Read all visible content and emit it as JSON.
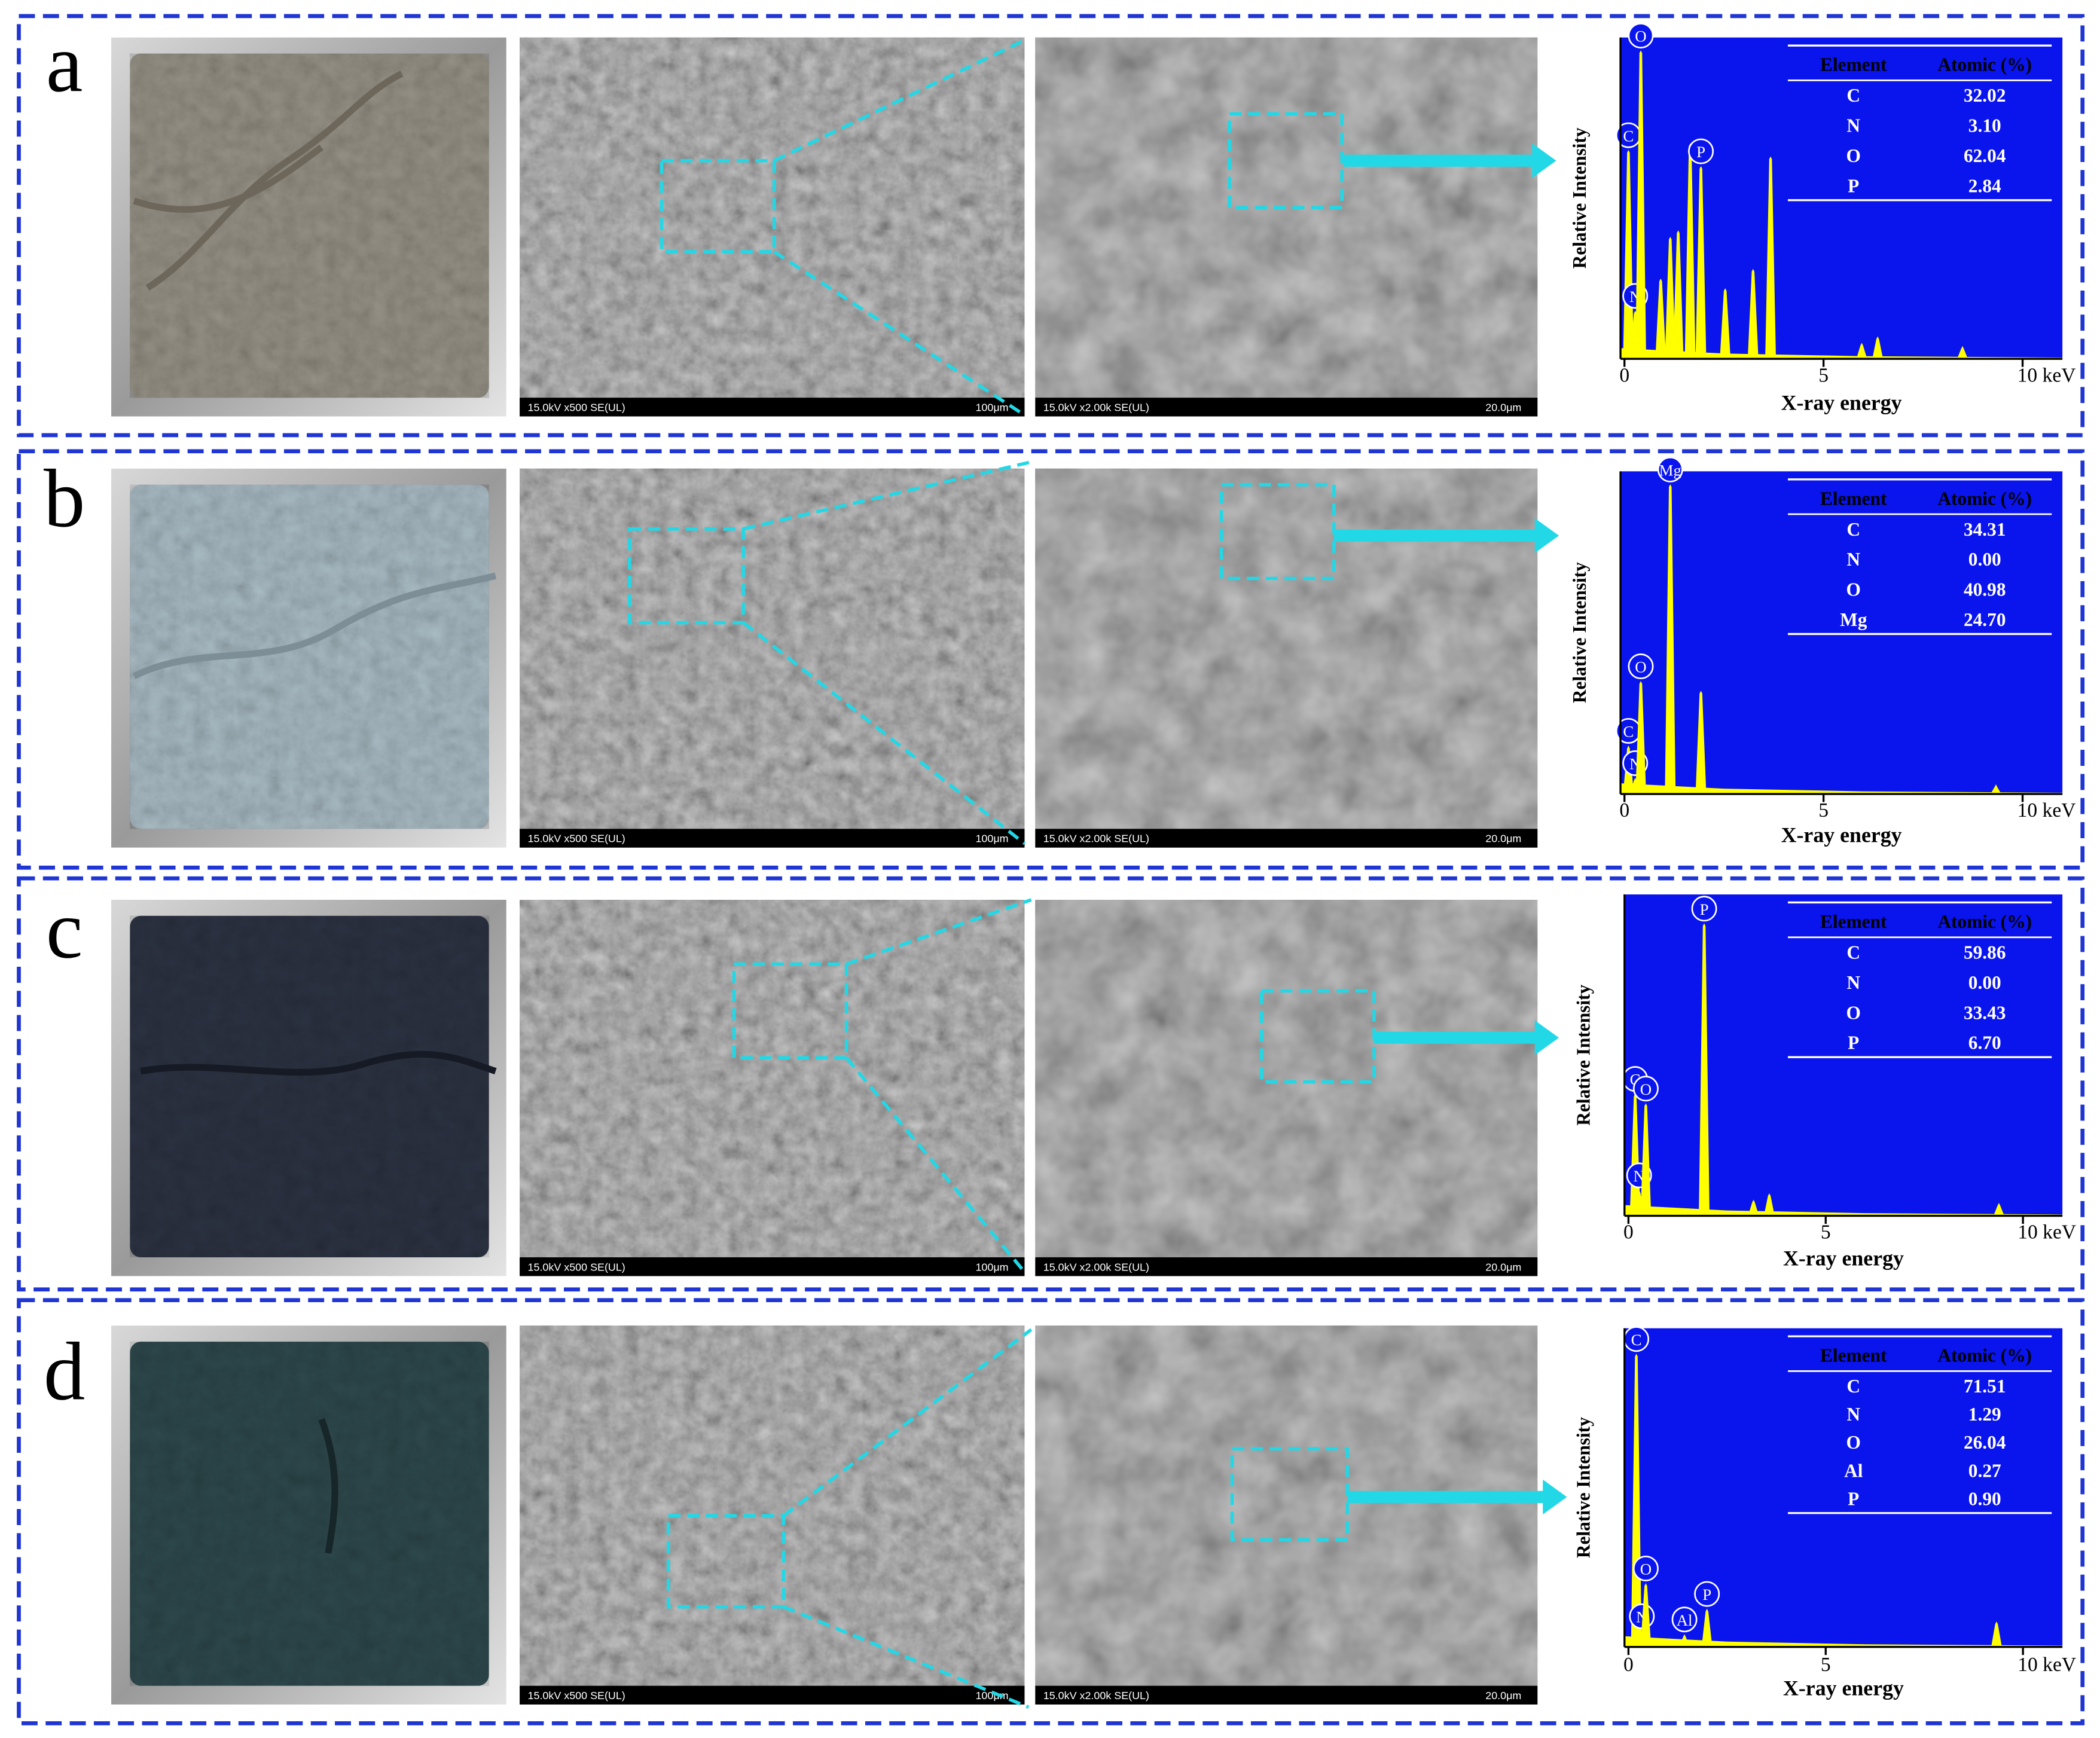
{
  "panels": [
    {
      "label": "a",
      "sem": [
        {
          "left": "15.0kV x500 SE(UL)",
          "right": "100μm"
        },
        {
          "left": "15.0kV x2.00k SE(UL)",
          "right": "20.0μm"
        }
      ],
      "spectrum": {
        "y_label": "Relative Intensity",
        "x_label": "X-ray energy",
        "xlim": [
          -0.1,
          11
        ],
        "xticks": [
          0,
          5,
          {
            "value": 10,
            "label": "10 keV"
          }
        ],
        "peak_energies": [
          0.1,
          0.27,
          0.41,
          0.91,
          1.15,
          1.35,
          1.65,
          1.92,
          2.53,
          3.23,
          3.67,
          5.96,
          6.36,
          8.49
        ],
        "peak_heights": [
          0.65,
          0.15,
          0.96,
          0.25,
          0.38,
          0.4,
          0.67,
          0.6,
          0.22,
          0.28,
          0.63,
          0.05,
          0.07,
          0.04
        ],
        "peak_labels": [
          "C",
          "N",
          "O",
          null,
          null,
          null,
          null,
          "P",
          null,
          null,
          null,
          null,
          null,
          null
        ],
        "table": {
          "header": [
            "Element",
            "Atomic (%)"
          ],
          "rows": [
            [
              "C",
              "32.02"
            ],
            [
              "N",
              "3.10"
            ],
            [
              "O",
              "62.04"
            ],
            [
              "P",
              "2.84"
            ]
          ]
        }
      }
    },
    {
      "label": "b",
      "sem": [
        {
          "left": "15.0kV x500 SE(UL)",
          "right": "100μm"
        },
        {
          "left": "15.0kV x2.00k SE(UL)",
          "right": "20.0μm"
        }
      ],
      "spectrum": {
        "y_label": "Relative Intensity",
        "x_label": "X-ray energy",
        "xlim": [
          -0.1,
          11
        ],
        "xticks": [
          0,
          5,
          {
            "value": 10,
            "label": "10 keV"
          }
        ],
        "peak_energies": [
          0.1,
          0.27,
          0.41,
          1.15,
          1.92,
          9.33
        ],
        "peak_heights": [
          0.15,
          0.05,
          0.35,
          0.96,
          0.32,
          0.03
        ],
        "peak_labels": [
          "C",
          "N",
          "O",
          "Mg",
          null,
          null
        ],
        "table": {
          "header": [
            "Element",
            "Atomic (%)"
          ],
          "rows": [
            [
              "C",
              "34.31"
            ],
            [
              "N",
              "0.00"
            ],
            [
              "O",
              "40.98"
            ],
            [
              "Mg",
              "24.70"
            ]
          ]
        }
      }
    },
    {
      "label": "c",
      "sem": [
        {
          "left": "15.0kV x500 SE(UL)",
          "right": "100μm"
        },
        {
          "left": "15.0kV x2.00k SE(UL)",
          "right": "20.0μm"
        }
      ],
      "spectrum": {
        "y_label": "Relative Intensity",
        "x_label": "X-ray energy",
        "xlim": [
          -0.1,
          11
        ],
        "xticks": [
          0,
          5,
          {
            "value": 10,
            "label": "10 keV"
          }
        ],
        "peak_energies": [
          0.17,
          0.27,
          0.44,
          1.92,
          3.17,
          3.57,
          9.39
        ],
        "peak_heights": [
          0.38,
          0.08,
          0.35,
          0.91,
          0.05,
          0.07,
          0.04
        ],
        "peak_labels": [
          "C",
          "N",
          "O",
          "P",
          null,
          null,
          null
        ],
        "table": {
          "header": [
            "Element",
            "Atomic (%)"
          ],
          "rows": [
            [
              "C",
              "59.86"
            ],
            [
              "N",
              "0.00"
            ],
            [
              "O",
              "33.43"
            ],
            [
              "P",
              "6.70"
            ]
          ]
        }
      }
    },
    {
      "label": "d",
      "sem": [
        {
          "left": "15.0kV x500 SE(UL)",
          "right": "100μm"
        },
        {
          "left": "15.0kV x2.00k SE(UL)",
          "right": "20.0μm"
        }
      ],
      "spectrum": {
        "y_label": "Relative Intensity",
        "x_label": "X-ray energy",
        "xlim": [
          -0.1,
          11
        ],
        "xticks": [
          0,
          5,
          {
            "value": 10,
            "label": "10 keV"
          }
        ],
        "peak_energies": [
          0.2,
          0.34,
          0.44,
          1.42,
          1.99,
          9.33
        ],
        "peak_heights": [
          0.92,
          0.05,
          0.2,
          0.04,
          0.12,
          0.08
        ],
        "peak_labels": [
          "C",
          "N",
          "O",
          "Al",
          "P",
          null
        ],
        "table": {
          "header": [
            "Element",
            "Atomic (%)"
          ],
          "rows": [
            [
              "C",
              "71.51"
            ],
            [
              "N",
              "1.29"
            ],
            [
              "O",
              "26.04"
            ],
            [
              "Al",
              "0.27"
            ],
            [
              "P",
              "0.90"
            ]
          ]
        }
      }
    }
  ]
}
